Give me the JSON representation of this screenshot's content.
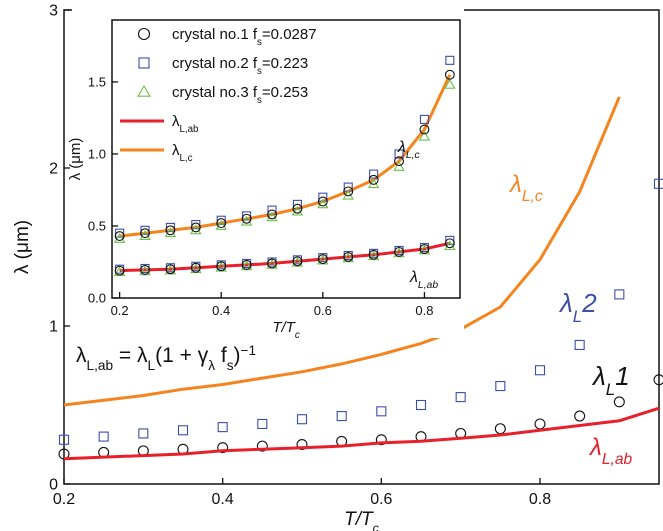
{
  "chart_data": [
    {
      "type": "line",
      "x_label": [
        {
          "t": "T/T"
        },
        {
          "t": "c",
          "s": "sub"
        }
      ],
      "y_label": [
        {
          "t": "λ (μm)"
        }
      ],
      "x": [
        0.2,
        0.25,
        0.3,
        0.35,
        0.4,
        0.45,
        0.5,
        0.55,
        0.6,
        0.65,
        0.7,
        0.75,
        0.8,
        0.85,
        0.9,
        0.95
      ],
      "xlim": [
        0.2,
        0.95
      ],
      "ylim": [
        0,
        3
      ],
      "xticks": [
        0.2,
        0.4,
        0.6,
        0.8
      ],
      "yticks": [
        0,
        1,
        2,
        3
      ],
      "series": [
        {
          "label": [
            {
              "t": "λ"
            },
            {
              "t": "L,c",
              "s": "sub"
            }
          ],
          "color": "#f5841f",
          "marker": "line",
          "values": [
            0.5,
            0.53,
            0.56,
            0.6,
            0.63,
            0.67,
            0.71,
            0.76,
            0.82,
            0.89,
            0.98,
            1.12,
            1.42,
            1.85,
            2.45,
            null
          ]
        },
        {
          "label": [
            {
              "t": "λ"
            },
            {
              "t": "L",
              "s": "sub"
            },
            {
              "t": "2"
            }
          ],
          "color": "#3b4ea8",
          "marker": "square",
          "values": [
            0.28,
            0.3,
            0.32,
            0.34,
            0.36,
            0.38,
            0.41,
            0.43,
            0.46,
            0.5,
            0.55,
            0.62,
            0.72,
            0.88,
            1.2,
            1.9
          ]
        },
        {
          "label": [
            {
              "t": "λ"
            },
            {
              "t": "L",
              "s": "sub"
            },
            {
              "t": "1"
            }
          ],
          "color": "#111111",
          "marker": "circle",
          "values": [
            0.19,
            0.2,
            0.21,
            0.22,
            0.23,
            0.24,
            0.25,
            0.27,
            0.28,
            0.3,
            0.32,
            0.35,
            0.38,
            0.43,
            0.52,
            0.66
          ]
        },
        {
          "label": [
            {
              "t": "λ"
            },
            {
              "t": "L,ab",
              "s": "sub"
            }
          ],
          "color": "#e8202a",
          "marker": "line",
          "values": [
            0.16,
            0.17,
            0.18,
            0.19,
            0.21,
            0.22,
            0.23,
            0.24,
            0.26,
            0.27,
            0.29,
            0.31,
            0.34,
            0.37,
            0.4,
            0.48
          ]
        }
      ],
      "annotations": [
        [
          {
            "t": "λ"
          },
          {
            "t": "L,ab",
            "s": "sub"
          },
          {
            "t": " = λ"
          },
          {
            "t": "L",
            "s": "sub"
          },
          {
            "t": "(1 + γ"
          },
          {
            "t": "λ",
            "s": "sub"
          },
          {
            "t": " f"
          },
          {
            "t": "s",
            "s": "sub"
          },
          {
            "t": ")"
          },
          {
            "t": "−1",
            "s": "sup"
          }
        ]
      ]
    },
    {
      "type": "line",
      "x_label": [
        {
          "t": "T/T"
        },
        {
          "t": "c",
          "s": "sub"
        }
      ],
      "y_label": [
        {
          "t": "λ (μm)"
        }
      ],
      "x": [
        0.2,
        0.25,
        0.3,
        0.35,
        0.4,
        0.45,
        0.5,
        0.55,
        0.6,
        0.65,
        0.7,
        0.75,
        0.8,
        0.85
      ],
      "xlim": [
        0.185,
        0.87
      ],
      "ylim": [
        0,
        1.93
      ],
      "xticks": [
        0.2,
        0.4,
        0.6,
        0.8
      ],
      "yticks": [
        {
          "value": 0,
          "label": "0.0"
        },
        0.5,
        {
          "value": 1,
          "label": "1.0"
        },
        1.5
      ],
      "series": [
        {
          "label": [
            {
              "t": "λ"
            },
            {
              "t": "L,ab",
              "s": "sub"
            }
          ],
          "color": "#e8202a",
          "marker": "line",
          "values": [
            0.19,
            0.195,
            0.2,
            0.21,
            0.22,
            0.23,
            0.24,
            0.255,
            0.27,
            0.285,
            0.3,
            0.32,
            0.34,
            0.38
          ]
        },
        {
          "label": [
            {
              "t": "λ"
            },
            {
              "t": "L,c",
              "s": "sub"
            }
          ],
          "color": "#f5841f",
          "marker": "line",
          "values": [
            0.43,
            0.45,
            0.47,
            0.49,
            0.52,
            0.55,
            0.58,
            0.62,
            0.67,
            0.74,
            0.82,
            0.95,
            1.17,
            1.55
          ]
        },
        {
          "label": [
            {
              "t": "crystal no.2 f"
            },
            {
              "t": "s",
              "s": "sub"
            },
            {
              "t": "=0.223"
            }
          ],
          "color": "#3b4ea8",
          "marker": "square",
          "values": [
            0.45,
            0.47,
            0.49,
            0.51,
            0.54,
            0.57,
            0.61,
            0.65,
            0.7,
            0.77,
            0.86,
            1.0,
            1.24,
            1.65
          ],
          "values_ab": [
            0.2,
            0.205,
            0.21,
            0.22,
            0.23,
            0.24,
            0.25,
            0.265,
            0.28,
            0.295,
            0.31,
            0.33,
            0.35,
            0.4
          ]
        },
        {
          "label": [
            {
              "t": "crystal no.3 f"
            },
            {
              "t": "s",
              "s": "sub"
            },
            {
              "t": "=0.253"
            }
          ],
          "color": "#6cc04a",
          "marker": "triangle",
          "values": [
            0.41,
            0.43,
            0.45,
            0.47,
            0.5,
            0.53,
            0.56,
            0.6,
            0.65,
            0.71,
            0.79,
            0.91,
            1.12,
            1.48
          ],
          "values_ab": [
            0.18,
            0.185,
            0.19,
            0.2,
            0.21,
            0.22,
            0.23,
            0.245,
            0.26,
            0.275,
            0.29,
            0.31,
            0.33,
            0.36
          ]
        },
        {
          "label": [
            {
              "t": "crystal no.1 f"
            },
            {
              "t": "s",
              "s": "sub"
            },
            {
              "t": "=0.0287"
            }
          ],
          "color": "#111111",
          "marker": "circle",
          "values": [
            0.43,
            0.45,
            0.47,
            0.49,
            0.52,
            0.55,
            0.58,
            0.62,
            0.67,
            0.74,
            0.82,
            0.95,
            1.17,
            1.55
          ],
          "values_ab": [
            0.19,
            0.195,
            0.2,
            0.21,
            0.22,
            0.23,
            0.24,
            0.255,
            0.27,
            0.285,
            0.3,
            0.32,
            0.34,
            0.38
          ]
        }
      ],
      "legend_order": [
        4,
        2,
        3,
        0,
        1
      ],
      "annotations": [
        [
          {
            "t": "λ"
          },
          {
            "t": "L,c",
            "s": "sub"
          }
        ],
        [
          {
            "t": "λ"
          },
          {
            "t": "L,ab",
            "s": "sub"
          }
        ]
      ]
    }
  ]
}
